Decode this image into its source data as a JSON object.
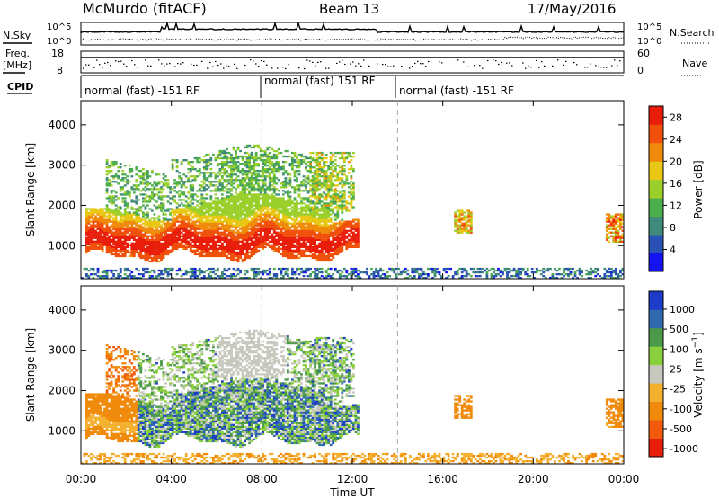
{
  "header": {
    "station": "McMurdo (fitACF)",
    "beam": "Beam 13",
    "date": "17/May/2016"
  },
  "top_panels": {
    "nsky_label": "N.Sky",
    "nsearch_label": "N.Search",
    "nsky_ticks": [
      "10^5",
      "10^0"
    ],
    "nsearch_ticks": [
      "10^5",
      "10^0"
    ],
    "freq_label": "Freq.",
    "freq_unit": "[MHz]",
    "freq_ticks": [
      "18",
      "8"
    ],
    "nave_label": "Nave",
    "nave_ticks": [
      "60",
      "0"
    ],
    "cpid_label": "CPID",
    "cpid_segments": [
      "normal (fast) -151 RF",
      "normal (fast) 151 RF",
      "normal (fast) -151 RF"
    ]
  },
  "colors": {
    "power": [
      "#1414f0",
      "#2a52b4",
      "#3f8a7a",
      "#4caf4c",
      "#9bcf2c",
      "#e8c814",
      "#f08a0a",
      "#f0500a",
      "#e81e0a"
    ],
    "velocity": [
      "#e81e0a",
      "#f05a0a",
      "#f08a0a",
      "#f4b030",
      "#c8c8be",
      "#8acf3c",
      "#4a9a4a",
      "#2f6ab0",
      "#1e3cc8"
    ]
  },
  "chart_data": [
    {
      "type": "heatmap",
      "title": "Power",
      "xlabel": "Time UT",
      "ylabel": "Slant Range [km]",
      "x_ticks": [
        "00:00",
        "04:00",
        "08:00",
        "12:00",
        "16:00",
        "20:00",
        "00:00"
      ],
      "xlim": [
        0,
        24
      ],
      "y_ticks": [
        "1000",
        "2000",
        "3000",
        "4000"
      ],
      "ylim": [
        180,
        4600
      ],
      "colorbar": {
        "label": "Power [dB]",
        "ticks": [
          "4",
          "8",
          "12",
          "16",
          "20",
          "24",
          "28"
        ],
        "range": [
          0,
          30
        ]
      },
      "dashed_lines_hours": [
        8,
        14
      ]
    },
    {
      "type": "heatmap",
      "title": "Velocity",
      "xlabel": "Time UT",
      "ylabel": "Slant Range [km]",
      "x_ticks": [
        "00:00",
        "04:00",
        "08:00",
        "12:00",
        "16:00",
        "20:00",
        "00:00"
      ],
      "xlim": [
        0,
        24
      ],
      "y_ticks": [
        "1000",
        "2000",
        "3000",
        "4000"
      ],
      "ylim": [
        180,
        4600
      ],
      "colorbar": {
        "label": "Velocity [m s^-1]",
        "ticks": [
          "1000",
          "500",
          "100",
          "25",
          "-25",
          "-100",
          "-500",
          "-1000"
        ]
      },
      "dashed_lines_hours": [
        8,
        14
      ]
    }
  ],
  "x_axis_title": "Time UT"
}
